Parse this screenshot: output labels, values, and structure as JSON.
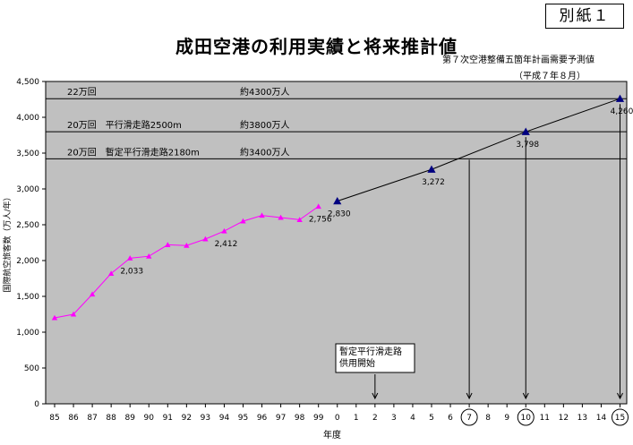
{
  "stamp": "別紙１",
  "title": "成田空港の利用実績と将来推計値",
  "source_note": "第７次空港整備五箇年計画需要予測値",
  "basis_note": "（平成７年８月）",
  "chart_data": {
    "type": "line",
    "title": "成田空港の利用実績と将来推計値",
    "xlabel": "年度",
    "ylabel": "国際航空旅客数（万人/年）",
    "ylim": [
      0,
      4500
    ],
    "yticks": [
      0,
      500,
      1000,
      1500,
      2000,
      2500,
      3000,
      3500,
      4000,
      4500
    ],
    "ytick_labels": [
      "0",
      "500",
      "1,000",
      "1,500",
      "2,000",
      "2,500",
      "3,000",
      "3,500",
      "4,000",
      "4,500"
    ],
    "categories": [
      "85",
      "86",
      "87",
      "88",
      "89",
      "90",
      "91",
      "92",
      "93",
      "94",
      "95",
      "96",
      "97",
      "98",
      "99",
      "0",
      "1",
      "2",
      "3",
      "4",
      "5",
      "6",
      "7",
      "8",
      "9",
      "10",
      "11",
      "12",
      "13",
      "14",
      "15"
    ],
    "circled_categories": [
      "7",
      "10",
      "15"
    ],
    "grid": false,
    "series": [
      {
        "name": "",
        "color": "#ff00ff",
        "marker": "triangle",
        "x": [
          "85",
          "86",
          "87",
          "88",
          "89",
          "90",
          "91",
          "92",
          "93",
          "94",
          "95",
          "96",
          "97",
          "98",
          "99"
        ],
        "values": [
          1200,
          1250,
          1530,
          1820,
          2033,
          2060,
          2220,
          2210,
          2300,
          2412,
          2550,
          2630,
          2600,
          2570,
          2756
        ]
      },
      {
        "name": "",
        "color": "#000080",
        "marker": "triangle",
        "x": [
          "0",
          "5",
          "10",
          "15"
        ],
        "values": [
          2830,
          3272,
          3798,
          4260
        ]
      }
    ],
    "data_labels": [
      {
        "x": "89",
        "value": 2033,
        "text": "2,033"
      },
      {
        "x": "94",
        "value": 2412,
        "text": "2,412"
      },
      {
        "x": "99",
        "value": 2756,
        "text": "2,756"
      },
      {
        "x": "0",
        "value": 2830,
        "text": "2,830"
      },
      {
        "x": "5",
        "value": 3272,
        "text": "3,272"
      },
      {
        "x": "10",
        "value": 3798,
        "text": "3,798"
      },
      {
        "x": "15",
        "value": 4260,
        "text": "4,260"
      }
    ],
    "reference_lines": [
      {
        "value": 4260,
        "label": "22万回",
        "capacity": "約4300万人"
      },
      {
        "value": 3798,
        "label": "20万回　平行滑走路2500m",
        "capacity": "約3800万人"
      },
      {
        "value": 3420,
        "label": "20万回　暫定平行滑走路2180m",
        "capacity": "約3400万人"
      }
    ],
    "milestone_arrows": [
      "7",
      "10",
      "15"
    ],
    "annotation": {
      "x": "2",
      "lines": [
        "暫定平行滑走路",
        "供用開始"
      ]
    }
  }
}
